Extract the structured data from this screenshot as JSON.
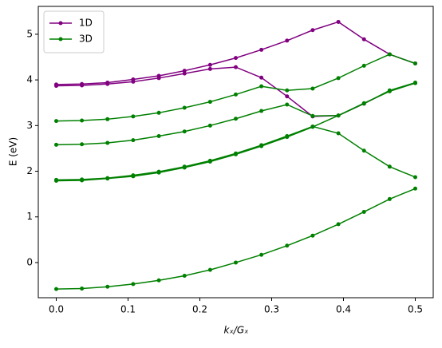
{
  "chart_data": {
    "type": "line",
    "x": [
      0,
      0.0357,
      0.0714,
      0.1071,
      0.1429,
      0.1786,
      0.2143,
      0.25,
      0.2857,
      0.3214,
      0.3571,
      0.3929,
      0.4286,
      0.4643,
      0.5
    ],
    "series": [
      {
        "name": "1D",
        "color": "#800080",
        "values": [
          [
            3.9,
            3.91,
            3.94,
            4.01,
            4.09,
            4.2,
            4.33,
            4.48,
            4.66,
            4.86,
            5.09,
            5.27,
            4.89,
            4.56,
            4.36
          ],
          [
            3.87,
            3.88,
            3.91,
            3.96,
            4.04,
            4.14,
            4.24,
            4.28,
            4.05,
            3.64,
            3.2,
            3.22,
            3.48,
            3.76,
            3.93
          ]
        ]
      },
      {
        "name": "3D",
        "color": "#008000",
        "values": [
          [
            -0.58,
            -0.57,
            -0.53,
            -0.47,
            -0.39,
            -0.29,
            -0.16,
            0.0,
            0.17,
            0.37,
            0.59,
            0.84,
            1.11,
            1.39,
            1.62
          ],
          [
            1.79,
            1.8,
            1.84,
            1.89,
            1.97,
            2.08,
            2.21,
            2.37,
            2.55,
            2.75,
            2.97,
            3.22,
            3.49,
            3.75,
            3.93
          ],
          [
            1.81,
            1.82,
            1.85,
            1.91,
            1.99,
            2.1,
            2.23,
            2.39,
            2.57,
            2.77,
            2.98,
            2.83,
            2.45,
            2.1,
            1.87
          ],
          [
            2.58,
            2.59,
            2.62,
            2.68,
            2.77,
            2.87,
            3.0,
            3.15,
            3.32,
            3.46,
            3.21,
            3.22,
            3.48,
            3.77,
            3.94
          ],
          [
            3.1,
            3.11,
            3.14,
            3.2,
            3.28,
            3.39,
            3.52,
            3.68,
            3.86,
            3.77,
            3.81,
            4.04,
            4.31,
            4.56,
            4.36
          ]
        ]
      }
    ],
    "xlabel": "kₓ/Gₓ",
    "ylabel": "E (eV)",
    "xlim": [
      -0.025,
      0.525
    ],
    "ylim": [
      -0.77,
      5.61
    ],
    "xticks": [
      {
        "value": 0,
        "label": "0.0"
      },
      {
        "value": 0.1,
        "label": "0.1"
      },
      {
        "value": 0.2,
        "label": "0.2"
      },
      {
        "value": 0.3,
        "label": "0.3"
      },
      {
        "value": 0.4,
        "label": "0.4"
      },
      {
        "value": 0.5,
        "label": "0.5"
      }
    ],
    "yticks": [
      0,
      1,
      2,
      3,
      4,
      5
    ],
    "legend": "upper-left"
  }
}
